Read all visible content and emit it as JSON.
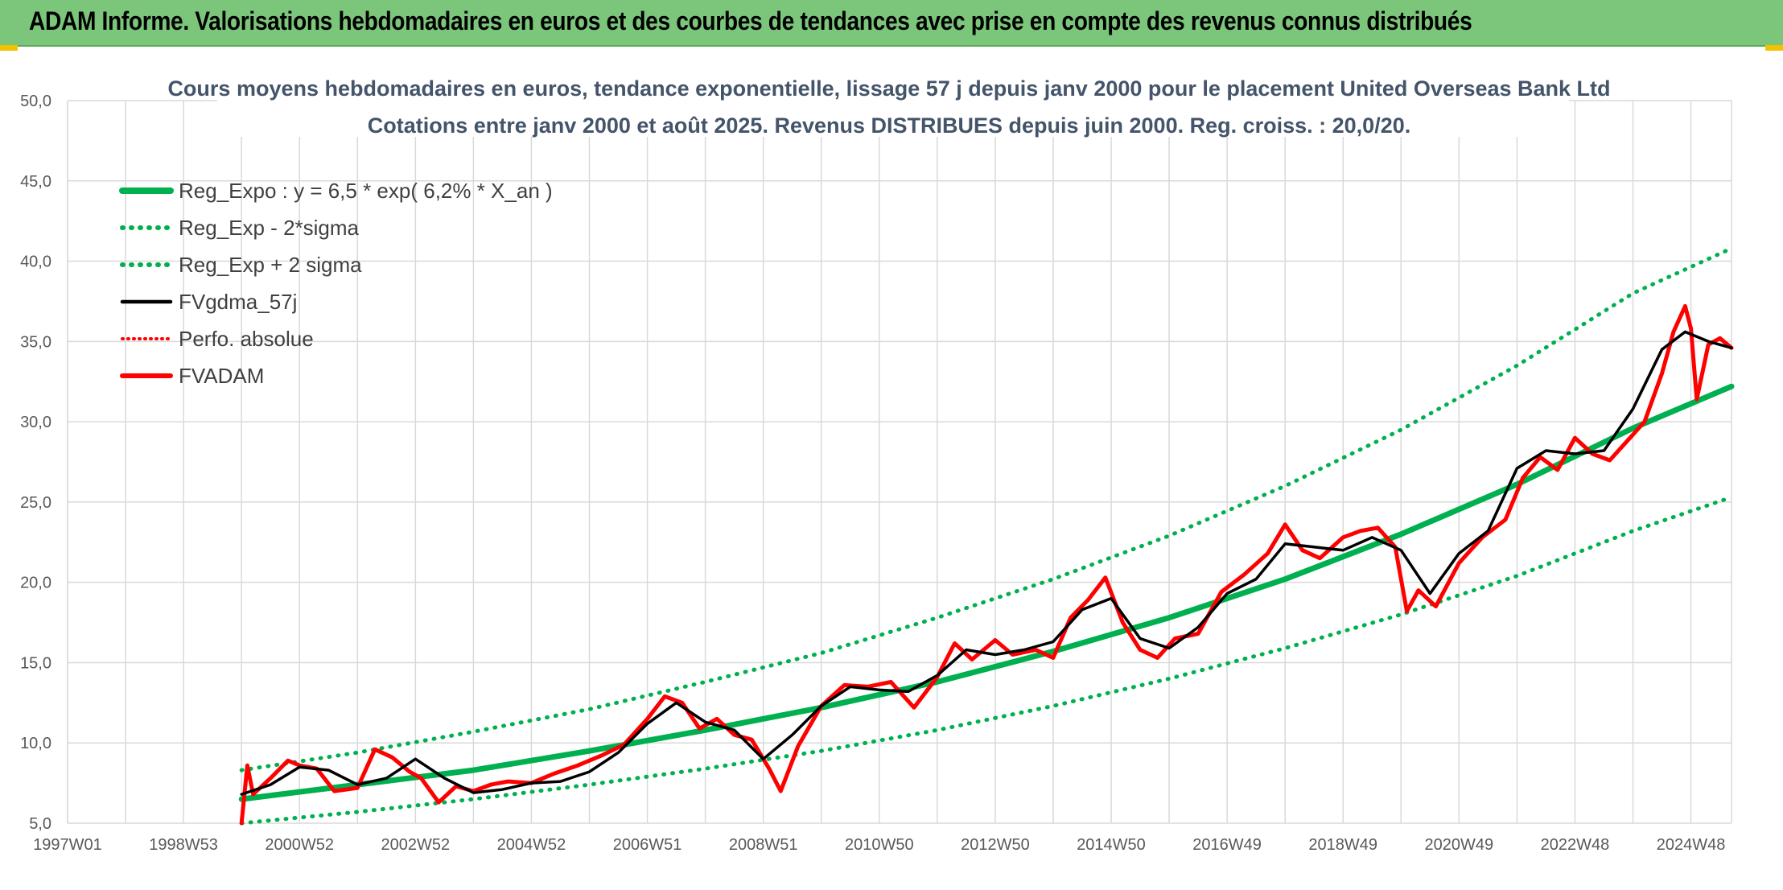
{
  "banner": {
    "title": "ADAM Informe. Valorisations hebdomadaires en euros et des courbes de tendances avec prise en compte des revenus connus distribués"
  },
  "colors": {
    "banner_bg": "#7bc67b",
    "trend": "#00b050",
    "average": "#000000",
    "price": "#ff0000",
    "grid": "#d9d9d9"
  },
  "chart_data": {
    "type": "line",
    "title": "Cours moyens hebdomadaires en euros, tendance exponentielle, lissage 57 j depuis janv 2000 pour le placement United Overseas Bank Ltd",
    "subtitle": "Cotations entre janv 2000 et août 2025. Revenus DISTRIBUES depuis juin 2000. Reg. croiss. : 20,0/20.",
    "xlabel": "",
    "ylabel": "",
    "x_range": [
      1997.0,
      2025.7
    ],
    "ylim": [
      5,
      50
    ],
    "y_ticks": [
      5,
      10,
      15,
      20,
      25,
      30,
      35,
      40,
      45,
      50
    ],
    "y_tick_labels": [
      "5,0",
      "10,0",
      "15,0",
      "20,0",
      "25,0",
      "30,0",
      "35,0",
      "40,0",
      "45,0",
      "50,0"
    ],
    "x_ticks": [
      1997.0,
      1999.0,
      2001.0,
      2003.0,
      2005.0,
      2007.0,
      2009.0,
      2011.0,
      2013.0,
      2015.0,
      2017.0,
      2019.0,
      2021.0,
      2023.0,
      2025.0
    ],
    "x_tick_labels": [
      "1997W01",
      "1998W53",
      "2000W52",
      "2002W52",
      "2004W52",
      "2006W51",
      "2008W51",
      "2010W50",
      "2012W50",
      "2014W50",
      "2016W49",
      "2018W49",
      "2020W49",
      "2022W48",
      "2024W48"
    ],
    "grid": true,
    "legend_position": "top-left",
    "series": [
      {
        "name": "Reg_Expo : y = 6,5 * exp( 6,2% *  X_an )",
        "style": "trend-solid",
        "x": [
          2000.0,
          2002.0,
          2004.0,
          2006.0,
          2008.0,
          2010.0,
          2012.0,
          2014.0,
          2016.0,
          2018.0,
          2020.0,
          2022.0,
          2024.0,
          2025.7
        ],
        "y": [
          6.5,
          7.4,
          8.3,
          9.5,
          10.8,
          12.2,
          13.8,
          15.7,
          17.8,
          20.2,
          23.0,
          26.1,
          29.6,
          32.2
        ]
      },
      {
        "name": "Reg_Exp - 2*sigma",
        "style": "trend-dotted",
        "x": [
          2000.0,
          2002.0,
          2004.0,
          2006.0,
          2008.0,
          2010.0,
          2012.0,
          2014.0,
          2016.0,
          2018.0,
          2020.0,
          2022.0,
          2024.0,
          2025.7
        ],
        "y": [
          5.0,
          5.7,
          6.5,
          7.4,
          8.4,
          9.5,
          10.8,
          12.3,
          14.0,
          15.9,
          18.0,
          20.4,
          23.2,
          25.3
        ]
      },
      {
        "name": "Reg_Exp + 2 sigma",
        "style": "trend-dotted",
        "x": [
          2000.0,
          2002.0,
          2004.0,
          2006.0,
          2008.0,
          2010.0,
          2012.0,
          2014.0,
          2016.0,
          2018.0,
          2020.0,
          2022.0,
          2024.0,
          2025.7
        ],
        "y": [
          8.3,
          9.4,
          10.7,
          12.1,
          13.8,
          15.6,
          17.8,
          20.2,
          22.9,
          26.0,
          29.5,
          33.5,
          38.0,
          40.8
        ]
      },
      {
        "name": "FVgdma_57j",
        "style": "avg",
        "x": [
          2000.0,
          2000.5,
          2001.0,
          2001.5,
          2002.0,
          2002.5,
          2003.0,
          2003.5,
          2004.0,
          2004.5,
          2005.0,
          2005.5,
          2006.0,
          2006.5,
          2007.0,
          2007.5,
          2008.0,
          2008.5,
          2009.0,
          2009.5,
          2010.0,
          2010.5,
          2011.0,
          2011.5,
          2012.0,
          2012.5,
          2013.0,
          2013.5,
          2014.0,
          2014.5,
          2015.0,
          2015.5,
          2016.0,
          2016.5,
          2017.0,
          2017.5,
          2018.0,
          2018.5,
          2019.0,
          2019.5,
          2020.0,
          2020.5,
          2021.0,
          2021.5,
          2022.0,
          2022.5,
          2023.0,
          2023.5,
          2024.0,
          2024.5,
          2024.9,
          2025.3,
          2025.7
        ],
        "y": [
          6.8,
          7.4,
          8.5,
          8.3,
          7.4,
          7.8,
          9.0,
          7.8,
          6.9,
          7.1,
          7.5,
          7.6,
          8.2,
          9.4,
          11.2,
          12.5,
          11.3,
          10.8,
          9.0,
          10.5,
          12.3,
          13.5,
          13.3,
          13.2,
          14.2,
          15.8,
          15.5,
          15.8,
          16.3,
          18.3,
          19.0,
          16.5,
          15.9,
          17.2,
          19.3,
          20.2,
          22.4,
          22.2,
          22.0,
          22.8,
          22.0,
          19.3,
          21.8,
          23.2,
          27.1,
          28.2,
          28.0,
          28.2,
          30.8,
          34.5,
          35.6,
          35.0,
          34.6
        ]
      },
      {
        "name": "Perfo. absolue",
        "style": "price-dotted",
        "x": [
          2000.0,
          2000.1,
          2000.2,
          2000.5,
          2000.8,
          2001.0,
          2001.3,
          2001.6,
          2002.0,
          2002.3,
          2002.6,
          2002.9,
          2003.1,
          2003.4,
          2003.7,
          2004.0,
          2004.3,
          2004.6,
          2005.0,
          2005.4,
          2005.8,
          2006.2,
          2006.6,
          2007.0,
          2007.3,
          2007.6,
          2007.9,
          2008.2,
          2008.5,
          2008.8,
          2009.1,
          2009.3,
          2009.6,
          2010.0,
          2010.4,
          2010.8,
          2011.2,
          2011.6,
          2012.0,
          2012.3,
          2012.6,
          2013.0,
          2013.3,
          2013.7,
          2014.0,
          2014.3,
          2014.6,
          2014.9,
          2015.2,
          2015.5,
          2015.8,
          2016.1,
          2016.5,
          2016.9,
          2017.3,
          2017.7,
          2018.0,
          2018.3,
          2018.6,
          2019.0,
          2019.3,
          2019.6,
          2019.9,
          2020.1,
          2020.3,
          2020.6,
          2021.0,
          2021.4,
          2021.8,
          2022.1,
          2022.4,
          2022.7,
          2023.0,
          2023.3,
          2023.6,
          2023.9,
          2024.2,
          2024.5,
          2024.7,
          2024.9,
          2025.0,
          2025.1,
          2025.3,
          2025.5,
          2025.7
        ],
        "y": [
          5.0,
          8.6,
          6.8,
          7.8,
          8.9,
          8.6,
          8.4,
          7.0,
          7.2,
          9.6,
          9.1,
          8.2,
          7.8,
          6.3,
          7.3,
          7.0,
          7.4,
          7.6,
          7.5,
          8.1,
          8.6,
          9.2,
          9.9,
          11.5,
          12.9,
          12.5,
          10.9,
          11.5,
          10.5,
          10.2,
          8.4,
          7.0,
          9.8,
          12.3,
          13.6,
          13.5,
          13.8,
          12.2,
          14.1,
          16.2,
          15.2,
          16.4,
          15.5,
          15.8,
          15.3,
          17.8,
          18.9,
          20.3,
          17.5,
          15.8,
          15.3,
          16.5,
          16.8,
          19.4,
          20.5,
          21.8,
          23.6,
          22.0,
          21.5,
          22.8,
          23.2,
          23.4,
          22.2,
          18.2,
          19.5,
          18.5,
          21.2,
          22.8,
          23.9,
          26.5,
          27.8,
          27.0,
          29.0,
          28.0,
          27.6,
          28.8,
          30.0,
          33.0,
          35.6,
          37.2,
          35.8,
          31.4,
          34.8,
          35.2,
          34.6
        ]
      },
      {
        "name": "FVADAM",
        "style": "price-solid",
        "x": [
          2000.0,
          2000.1,
          2000.2,
          2000.5,
          2000.8,
          2001.0,
          2001.3,
          2001.6,
          2002.0,
          2002.3,
          2002.6,
          2002.9,
          2003.1,
          2003.4,
          2003.7,
          2004.0,
          2004.3,
          2004.6,
          2005.0,
          2005.4,
          2005.8,
          2006.2,
          2006.6,
          2007.0,
          2007.3,
          2007.6,
          2007.9,
          2008.2,
          2008.5,
          2008.8,
          2009.1,
          2009.3,
          2009.6,
          2010.0,
          2010.4,
          2010.8,
          2011.2,
          2011.6,
          2012.0,
          2012.3,
          2012.6,
          2013.0,
          2013.3,
          2013.7,
          2014.0,
          2014.3,
          2014.6,
          2014.9,
          2015.2,
          2015.5,
          2015.8,
          2016.1,
          2016.5,
          2016.9,
          2017.3,
          2017.7,
          2018.0,
          2018.3,
          2018.6,
          2019.0,
          2019.3,
          2019.6,
          2019.9,
          2020.1,
          2020.3,
          2020.6,
          2021.0,
          2021.4,
          2021.8,
          2022.1,
          2022.4,
          2022.7,
          2023.0,
          2023.3,
          2023.6,
          2023.9,
          2024.2,
          2024.5,
          2024.7,
          2024.9,
          2025.0,
          2025.1,
          2025.3,
          2025.5,
          2025.7
        ],
        "y": [
          5.0,
          8.6,
          6.8,
          7.8,
          8.9,
          8.6,
          8.4,
          7.0,
          7.2,
          9.6,
          9.1,
          8.2,
          7.8,
          6.3,
          7.3,
          7.0,
          7.4,
          7.6,
          7.5,
          8.1,
          8.6,
          9.2,
          9.9,
          11.5,
          12.9,
          12.5,
          10.9,
          11.5,
          10.5,
          10.2,
          8.4,
          7.0,
          9.8,
          12.3,
          13.6,
          13.5,
          13.8,
          12.2,
          14.1,
          16.2,
          15.2,
          16.4,
          15.5,
          15.8,
          15.3,
          17.8,
          18.9,
          20.3,
          17.5,
          15.8,
          15.3,
          16.5,
          16.8,
          19.4,
          20.5,
          21.8,
          23.6,
          22.0,
          21.5,
          22.8,
          23.2,
          23.4,
          22.2,
          18.2,
          19.5,
          18.5,
          21.2,
          22.8,
          23.9,
          26.5,
          27.8,
          27.0,
          29.0,
          28.0,
          27.6,
          28.8,
          30.0,
          33.0,
          35.6,
          37.2,
          35.8,
          31.4,
          34.8,
          35.2,
          34.6
        ]
      }
    ]
  }
}
